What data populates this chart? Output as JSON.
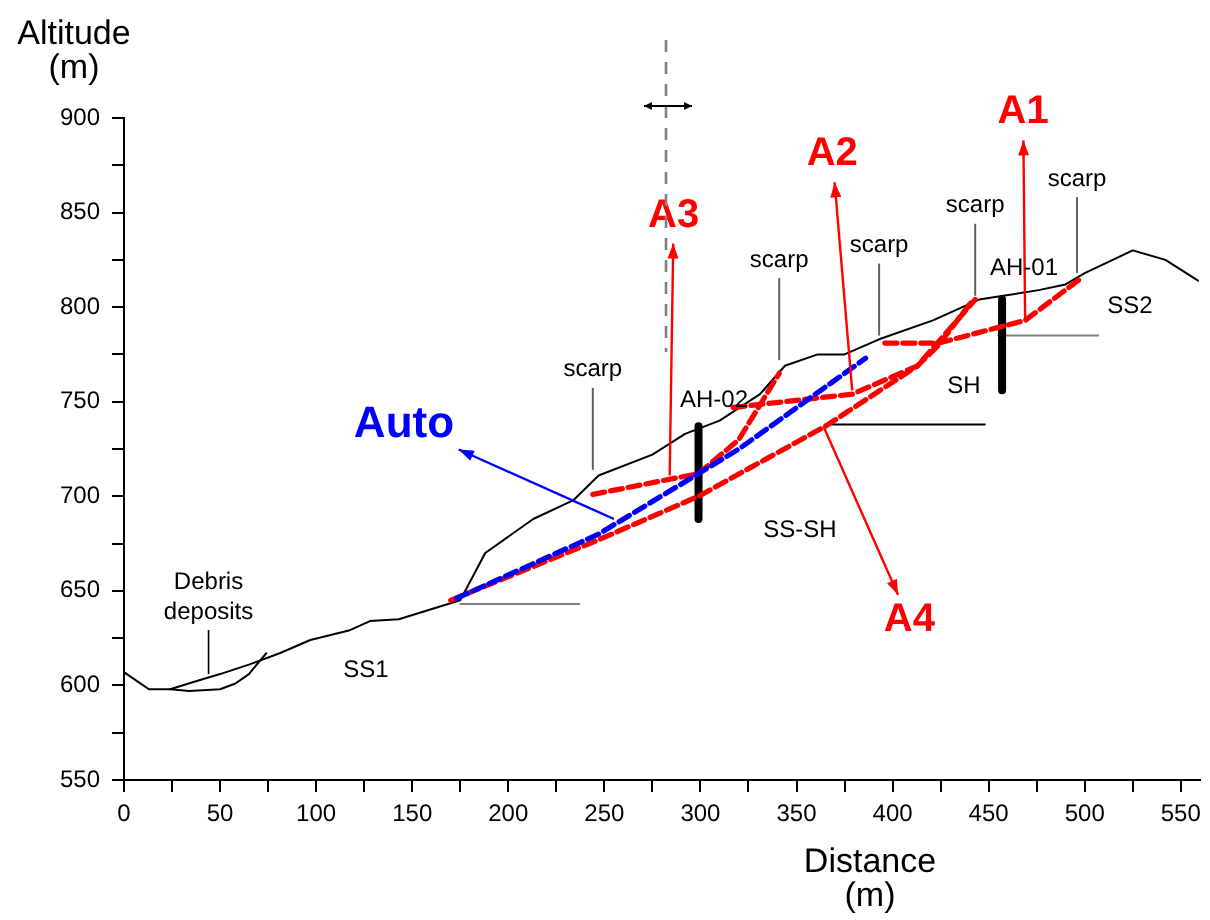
{
  "chart_data": {
    "type": "line",
    "xlabel": "Distance\n(m)",
    "ylabel": "Altitude\n(m)",
    "xlim": [
      0,
      560
    ],
    "ylim": [
      550,
      900
    ],
    "xticks": [
      0,
      {
        "value": 25,
        "label": null
      },
      50,
      {
        "value": 75,
        "label": null
      },
      100,
      {
        "value": 125,
        "label": null
      },
      150,
      {
        "value": 175,
        "label": null
      },
      200,
      {
        "value": 225,
        "label": null
      },
      250,
      {
        "value": 275,
        "label": null
      },
      300,
      {
        "value": 325,
        "label": null
      },
      350,
      {
        "value": 375,
        "label": null
      },
      400,
      {
        "value": 425,
        "label": null
      },
      450,
      {
        "value": 475,
        "label": null
      },
      500,
      {
        "value": 525,
        "label": null
      },
      550
    ],
    "yticks": [
      550,
      {
        "value": 575,
        "label": null
      },
      600,
      {
        "value": 625,
        "label": null
      },
      650,
      {
        "value": 675,
        "label": null
      },
      700,
      {
        "value": 725,
        "label": null
      },
      750,
      {
        "value": 775,
        "label": null
      },
      800,
      {
        "value": 825,
        "label": null
      },
      850,
      {
        "value": 875,
        "label": null
      },
      900
    ],
    "grid": false,
    "legend": false,
    "marker": "none",
    "series": [
      {
        "color": "#000000",
        "line_style": "solid",
        "x": [
          0,
          13,
          24,
          40,
          50,
          65,
          81,
          97,
          117,
          128,
          143,
          159,
          175,
          188,
          213,
          234,
          247,
          275,
          292,
          310,
          331,
          344,
          361,
          375,
          393,
          421,
          445,
          476,
          490,
          500,
          525,
          542,
          559
        ],
        "values": [
          607,
          598,
          598,
          603,
          606,
          611,
          617,
          624,
          629,
          634,
          635,
          640,
          645,
          670,
          688,
          698,
          711,
          722,
          733,
          740,
          754,
          769,
          775,
          775,
          783,
          793,
          804,
          809,
          812,
          818,
          830,
          825,
          814
        ]
      },
      {
        "color": "#000000",
        "line_style": "solid",
        "x": [
          24,
          34,
          50,
          58,
          65,
          74
        ],
        "values": [
          598,
          597,
          598,
          601,
          606,
          617
        ]
      },
      {
        "color": "#808080",
        "line_style": "solid",
        "x": [
          175,
          237
        ],
        "values": [
          643,
          643
        ]
      },
      {
        "color": "#000000",
        "line_style": "solid",
        "x": [
          365,
          448
        ],
        "values": [
          738,
          738
        ]
      },
      {
        "color": "#808080",
        "line_style": "solid",
        "x": [
          455,
          507
        ],
        "values": [
          785,
          785
        ]
      },
      {
        "color": "#000000",
        "line_style": "solid",
        "x": [
          299,
          299
        ],
        "values": [
          737,
          688
        ]
      },
      {
        "color": "#000000",
        "line_style": "solid",
        "x": [
          457,
          457
        ],
        "values": [
          804,
          756
        ]
      },
      {
        "color": "#ff0000",
        "line_style": "dashed",
        "x": [
          170,
          247,
          299,
          365,
          413,
          424,
          442
        ],
        "values": [
          645,
          677,
          700,
          737,
          769,
          780,
          804
        ]
      },
      {
        "color": "#ff0000",
        "line_style": "dashed",
        "x": [
          244,
          299,
          320,
          341
        ],
        "values": [
          701,
          712,
          730,
          765
        ]
      },
      {
        "color": "#ff0000",
        "line_style": "dashed",
        "x": [
          317,
          379,
          413,
          443
        ],
        "values": [
          747,
          754,
          769,
          804
        ]
      },
      {
        "color": "#ff0000",
        "line_style": "dashed",
        "x": [
          396,
          424,
          469,
          499
        ],
        "values": [
          781,
          781,
          793,
          816
        ]
      },
      {
        "color": "#0000ff",
        "line_style": "dashed",
        "x": [
          173,
          247,
          299,
          320,
          386
        ],
        "values": [
          646,
          680,
          712,
          725,
          773
        ]
      }
    ],
    "annotations": [
      {
        "text": "Auto",
        "x": 255,
        "y": 688
      },
      {
        "text": "A3",
        "x": 284,
        "y": 711
      },
      {
        "text": "A2",
        "x": 379,
        "y": 756
      },
      {
        "text": "A1",
        "x": 469,
        "y": 793
      },
      {
        "text": "A4",
        "x": 364,
        "y": 737
      },
      {
        "text": "scarp",
        "x": 244,
        "y": 714
      },
      {
        "text": "scarp",
        "x": 341,
        "y": 772
      },
      {
        "text": "scarp",
        "x": 393,
        "y": 785
      },
      {
        "text": "scarp",
        "x": 443,
        "y": 806
      },
      {
        "text": "scarp",
        "x": 496,
        "y": 818
      },
      {
        "text": "Debris deposits",
        "x": 44,
        "y": 606
      },
      "AH-02",
      "AH-01",
      "SS1",
      "SS2",
      "SH",
      "SS-SH"
    ]
  }
}
